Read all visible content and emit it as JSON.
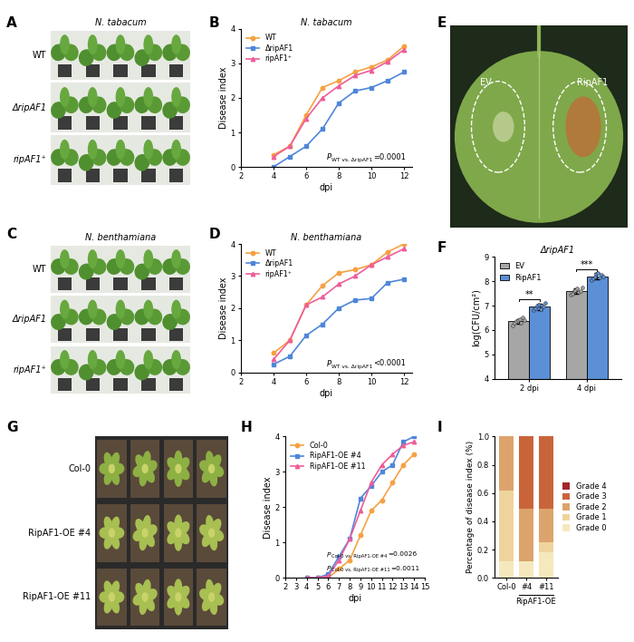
{
  "figure_panels": [
    {
      "panel": "A",
      "title": "N. tabacum",
      "row_labels": [
        "WT",
        "ΔripAF1",
        "ripAF1⁺"
      ]
    },
    {
      "panel": "C",
      "title": "N. benthamiana",
      "row_labels": [
        "WT",
        "ΔripAF1",
        "ripAF1⁺"
      ]
    },
    {
      "panel": "E",
      "labels": [
        "EV",
        "RipAF1"
      ]
    },
    {
      "panel": "G",
      "row_labels": [
        "Col-0",
        "RipAF1-OE #4",
        "RipAF1-OE #11"
      ]
    }
  ],
  "chart_data": [
    {
      "panel": "B",
      "type": "line",
      "title": "N. tabacum",
      "xlabel": "dpi",
      "ylabel": "Disease index",
      "x": [
        4,
        5,
        6,
        7,
        8,
        9,
        10,
        11,
        12
      ],
      "series": [
        {
          "name": "WT",
          "color": "#f5a142",
          "marker": "circle",
          "values": [
            0.35,
            0.6,
            1.5,
            2.3,
            2.5,
            2.75,
            2.9,
            3.1,
            3.5
          ]
        },
        {
          "name": "ΔripAF1",
          "color": "#4f86d9",
          "marker": "square",
          "values": [
            0.0,
            0.3,
            0.6,
            1.1,
            1.85,
            2.2,
            2.3,
            2.5,
            2.75
          ]
        },
        {
          "name": "ripAF1⁺",
          "color": "#ee5d9a",
          "marker": "triangle",
          "values": [
            0.3,
            0.6,
            1.4,
            2.0,
            2.35,
            2.65,
            2.8,
            3.05,
            3.4
          ]
        }
      ],
      "xlim": [
        2,
        12.5
      ],
      "xticks": [
        2,
        4,
        6,
        8,
        10,
        12
      ],
      "ylim": [
        0,
        4
      ],
      "yticks": [
        0,
        1,
        2,
        3,
        4
      ],
      "legend": "upper left",
      "annotations": [
        {
          "text": "P",
          "sub": "WT vs. ΔripAF1",
          "after": "=0.0001"
        }
      ]
    },
    {
      "panel": "D",
      "type": "line",
      "title": "N. benthamiana",
      "xlabel": "dpi",
      "ylabel": "Disease index",
      "x": [
        4,
        5,
        6,
        7,
        8,
        9,
        10,
        11,
        12
      ],
      "series": [
        {
          "name": "WT",
          "color": "#f5a142",
          "marker": "circle",
          "values": [
            0.6,
            1.0,
            2.1,
            2.7,
            3.1,
            3.2,
            3.35,
            3.75,
            4.0
          ]
        },
        {
          "name": "ΔripAF1",
          "color": "#4f86d9",
          "marker": "square",
          "values": [
            0.25,
            0.5,
            1.15,
            1.5,
            2.0,
            2.25,
            2.3,
            2.8,
            2.9
          ]
        },
        {
          "name": "ripAF1⁺",
          "color": "#ee5d9a",
          "marker": "triangle",
          "values": [
            0.4,
            1.0,
            2.1,
            2.35,
            2.75,
            3.0,
            3.35,
            3.6,
            3.85
          ]
        }
      ],
      "xlim": [
        2,
        12.5
      ],
      "xticks": [
        2,
        4,
        6,
        8,
        10,
        12
      ],
      "ylim": [
        0,
        4
      ],
      "yticks": [
        0,
        1,
        2,
        3,
        4
      ],
      "legend": "upper left",
      "annotations": [
        {
          "text": "P",
          "sub": "WT vs. ΔripAF1",
          "after": "<0.0001"
        }
      ]
    },
    {
      "panel": "F",
      "type": "bar",
      "title": "ΔripAF1",
      "ylabel": "log(CFU/cm²)",
      "categories": [
        "2 dpi",
        "4 dpi"
      ],
      "series": [
        {
          "name": "EV",
          "color": "#a6a6a6",
          "values": [
            6.35,
            7.6
          ],
          "errors": [
            0.1,
            0.12
          ],
          "points": [
            [
              6.2,
              6.3,
              6.35,
              6.4,
              6.45,
              6.3,
              6.5,
              6.4
            ],
            [
              7.45,
              7.5,
              7.6,
              7.65,
              7.7,
              7.55,
              7.6,
              7.75
            ]
          ]
        },
        {
          "name": "RipAF1",
          "color": "#5b8fd6",
          "values": [
            6.95,
            8.2
          ],
          "errors": [
            0.12,
            0.12
          ],
          "points": [
            [
              6.8,
              6.9,
              7.0,
              7.05,
              6.85,
              7.0,
              6.95,
              7.1
            ],
            [
              8.05,
              8.1,
              8.2,
              8.3,
              8.35,
              8.15,
              8.25,
              8.2
            ]
          ]
        }
      ],
      "ylim": [
        4,
        9
      ],
      "yticks": [
        4,
        5,
        6,
        7,
        8,
        9
      ],
      "legend": "upper left",
      "annotations": [
        "**",
        "***"
      ]
    },
    {
      "panel": "H",
      "type": "line",
      "xlabel": "dpi",
      "ylabel": "Disease index",
      "x": [
        4,
        5,
        6,
        7,
        8,
        9,
        10,
        11,
        12,
        13,
        14
      ],
      "series": [
        {
          "name": "Col-0",
          "color": "#f5a142",
          "marker": "circle",
          "values": [
            0,
            0,
            0,
            0.25,
            0.5,
            1.2,
            1.9,
            2.2,
            2.7,
            3.2,
            3.5
          ]
        },
        {
          "name": "RipAF1-OE #4",
          "color": "#4f86d9",
          "marker": "square",
          "values": [
            0,
            0,
            0.1,
            0.6,
            1.1,
            2.25,
            2.6,
            3.0,
            3.2,
            3.85,
            4.0
          ]
        },
        {
          "name": "RipAF1-OE #11",
          "color": "#ee5d9a",
          "marker": "triangle",
          "values": [
            0,
            0,
            0.05,
            0.5,
            1.1,
            1.9,
            2.7,
            3.2,
            3.5,
            3.75,
            3.85
          ]
        }
      ],
      "xlim": [
        2,
        15
      ],
      "xticks": [
        2,
        3,
        4,
        5,
        6,
        7,
        8,
        9,
        10,
        11,
        12,
        13,
        14,
        15
      ],
      "ylim": [
        0,
        4
      ],
      "yticks": [
        0,
        1,
        2,
        3,
        4
      ],
      "legend": "upper left",
      "annotations": [
        {
          "text": "P",
          "sub": "Col-0 vs. RipAF1-OE #4",
          "after": "=0.0026"
        },
        {
          "text": "P",
          "sub": "Col-0 vs. RipAF1-OE #11",
          "after": "=0.0011"
        }
      ]
    },
    {
      "panel": "I",
      "type": "bar",
      "stacked": true,
      "ylabel": "Percentage of disease index (%)",
      "categories": [
        "Col-0",
        "#4",
        "#11"
      ],
      "groups": [
        {
          "name": "RipAF1-OE",
          "members": [
            "#4",
            "#11"
          ]
        }
      ],
      "series": [
        {
          "name": "Grade 0",
          "color": "#f6e8bd",
          "values": [
            0.12,
            0.12,
            0.18
          ]
        },
        {
          "name": "Grade 1",
          "color": "#eed49c",
          "values": [
            0.5,
            0,
            0.07
          ]
        },
        {
          "name": "Grade 2",
          "color": "#dca46c",
          "values": [
            0.38,
            0.37,
            0.24
          ]
        },
        {
          "name": "Grade 3",
          "color": "#c9643a",
          "values": [
            0,
            0.51,
            0.51
          ]
        },
        {
          "name": "Grade 4",
          "color": "#a3262a",
          "values": [
            0,
            0,
            0
          ]
        }
      ],
      "ylim": [
        0,
        1
      ],
      "yticks": [
        {
          "value": 0,
          "label": "0.0"
        },
        {
          "value": 0.2,
          "label": "0.2"
        },
        {
          "value": 0.4,
          "label": "0.4"
        },
        {
          "value": 0.6,
          "label": "0.6"
        },
        {
          "value": 0.8,
          "label": "0.8"
        },
        {
          "value": 1,
          "label": "1.0"
        }
      ],
      "legend": "right"
    }
  ]
}
